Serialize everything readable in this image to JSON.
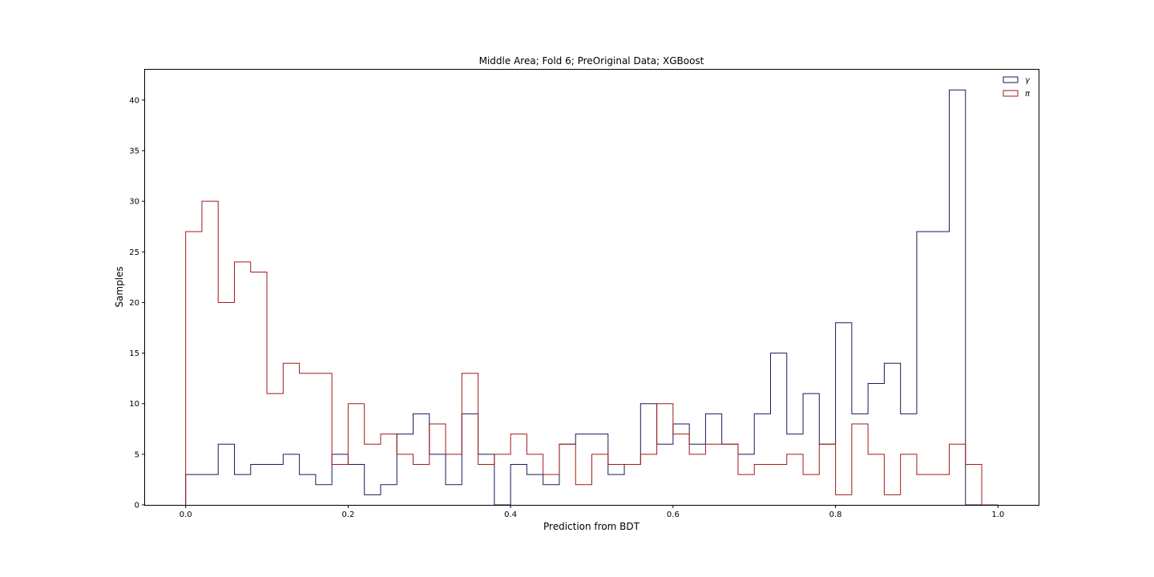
{
  "chart_data": {
    "type": "step-histogram",
    "title": "Middle Area; Fold 6; PreOriginal Data; XGBoost",
    "xlabel": "Prediction from BDT",
    "ylabel": "Samples",
    "xlim": [
      -0.05,
      1.05
    ],
    "ylim": [
      0,
      43
    ],
    "xticks": [
      "0.0",
      "0.2",
      "0.4",
      "0.6",
      "0.8",
      "1.0"
    ],
    "yticks": [
      "0",
      "5",
      "10",
      "15",
      "20",
      "25",
      "30",
      "35",
      "40"
    ],
    "bins": 50,
    "bin_range": [
      0,
      1
    ],
    "grid": false,
    "legend_position": "top-right",
    "series": [
      {
        "name": "γ",
        "color": "#1a1a5e",
        "values": [
          3,
          3,
          6,
          3,
          4,
          4,
          5,
          3,
          2,
          5,
          4,
          1,
          2,
          7,
          9,
          5,
          2,
          9,
          5,
          0,
          4,
          3,
          2,
          6,
          7,
          7,
          3,
          4,
          10,
          6,
          8,
          6,
          9,
          6,
          5,
          9,
          15,
          7,
          11,
          6,
          18,
          9,
          12,
          14,
          9,
          27,
          27,
          41,
          0,
          0
        ]
      },
      {
        "name": "π",
        "color": "#a11b1b",
        "values": [
          27,
          30,
          20,
          24,
          23,
          11,
          14,
          13,
          13,
          4,
          10,
          6,
          7,
          5,
          4,
          8,
          5,
          13,
          4,
          5,
          7,
          5,
          3,
          6,
          2,
          5,
          4,
          4,
          5,
          10,
          7,
          5,
          6,
          6,
          3,
          4,
          4,
          5,
          3,
          6,
          1,
          8,
          5,
          1,
          5,
          3,
          3,
          6,
          4,
          0
        ]
      }
    ]
  }
}
